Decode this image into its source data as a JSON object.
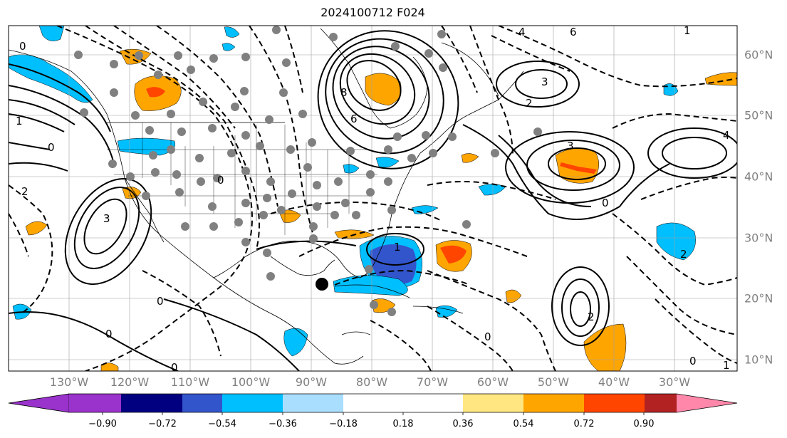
{
  "title": "2024100712 F024",
  "longitude_labels": [
    "130°W",
    "120°W",
    "110°W",
    "100°W",
    "90°W",
    "80°W",
    "70°W",
    "60°W",
    "50°W",
    "40°W",
    "30°W"
  ],
  "latitude_labels": [
    "60°N",
    "50°N",
    "40°N",
    "30°N",
    "20°N",
    "10°N"
  ],
  "colorbar": {
    "ticks": [
      "−0.90",
      "−0.72",
      "−0.54",
      "−0.36",
      "−0.18",
      "0.18",
      "0.36",
      "0.54",
      "0.72",
      "0.90"
    ],
    "colors": [
      "#9933cc",
      "#000080",
      "#3355cc",
      "#00bfff",
      "#aadeff",
      "#ffffff",
      "#ffe680",
      "#ffa500",
      "#ff4500",
      "#b22222",
      "#ff88aa"
    ]
  },
  "colors": {
    "positive_contour": "#000000",
    "negative_contour": "#000000",
    "station_dot": "#808080",
    "center_marker": "#000000",
    "gridline": "#a0a0a0",
    "axis_label": "#808080"
  },
  "map": {
    "contour_labels": [
      "0",
      "0",
      "0",
      "0",
      "0",
      "0",
      "0",
      "0",
      "0",
      "2",
      "2",
      "2",
      "2",
      "3",
      "3",
      "3",
      "4",
      "4",
      "6",
      "6",
      "8",
      "1",
      "1",
      "1",
      "1"
    ]
  }
}
